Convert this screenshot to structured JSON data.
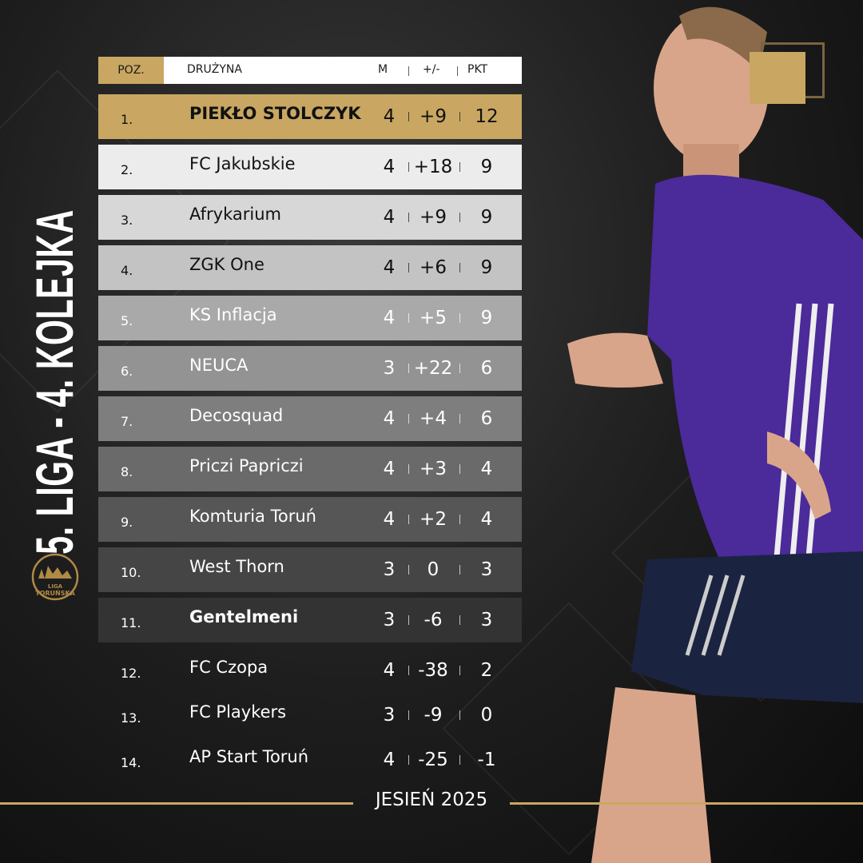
{
  "title": "5. LIGA - 4. KOLEJKA",
  "logo": {
    "text": "LIGA TORUŃSKA"
  },
  "header": {
    "pos": "POZ.",
    "team": "DRUŻYNA",
    "m": "M",
    "gd": "+/-",
    "pkt": "PKT"
  },
  "rows": [
    {
      "pos": "1.",
      "team": "PIEKŁO STOLCZYK",
      "m": "4",
      "gd": "+9",
      "pkt": "12"
    },
    {
      "pos": "2.",
      "team": "FC Jakubskie",
      "m": "4",
      "gd": "+18",
      "pkt": "9"
    },
    {
      "pos": "3.",
      "team": "Afrykarium",
      "m": "4",
      "gd": "+9",
      "pkt": "9"
    },
    {
      "pos": "4.",
      "team": "ZGK One",
      "m": "4",
      "gd": "+6",
      "pkt": "9"
    },
    {
      "pos": "5.",
      "team": "KS Inflacja",
      "m": "4",
      "gd": "+5",
      "pkt": "9"
    },
    {
      "pos": "6.",
      "team": "NEUCA",
      "m": "3",
      "gd": "+22",
      "pkt": "6"
    },
    {
      "pos": "7.",
      "team": "Decosquad",
      "m": "4",
      "gd": "+4",
      "pkt": "6"
    },
    {
      "pos": "8.",
      "team": "Priczi Papriczi",
      "m": "4",
      "gd": "+3",
      "pkt": "4"
    },
    {
      "pos": "9.",
      "team": "Komturia Toruń",
      "m": "4",
      "gd": "+2",
      "pkt": "4"
    },
    {
      "pos": "10.",
      "team": "West Thorn",
      "m": "3",
      "gd": "0",
      "pkt": "3"
    },
    {
      "pos": "11.",
      "team": "Gentelmeni",
      "m": "3",
      "gd": "-6",
      "pkt": "3"
    },
    {
      "pos": "12.",
      "team": "FC Czopa",
      "m": "4",
      "gd": "-38",
      "pkt": "2"
    },
    {
      "pos": "13.",
      "team": "FC Playkers",
      "m": "3",
      "gd": "-9",
      "pkt": "0"
    },
    {
      "pos": "14.",
      "team": "AP Start Toruń",
      "m": "4",
      "gd": "-25",
      "pkt": "-1"
    }
  ],
  "footer": "JESIEŃ 2025",
  "colors": {
    "gold": "#c9a762",
    "jersey": "#4b2a9a"
  }
}
